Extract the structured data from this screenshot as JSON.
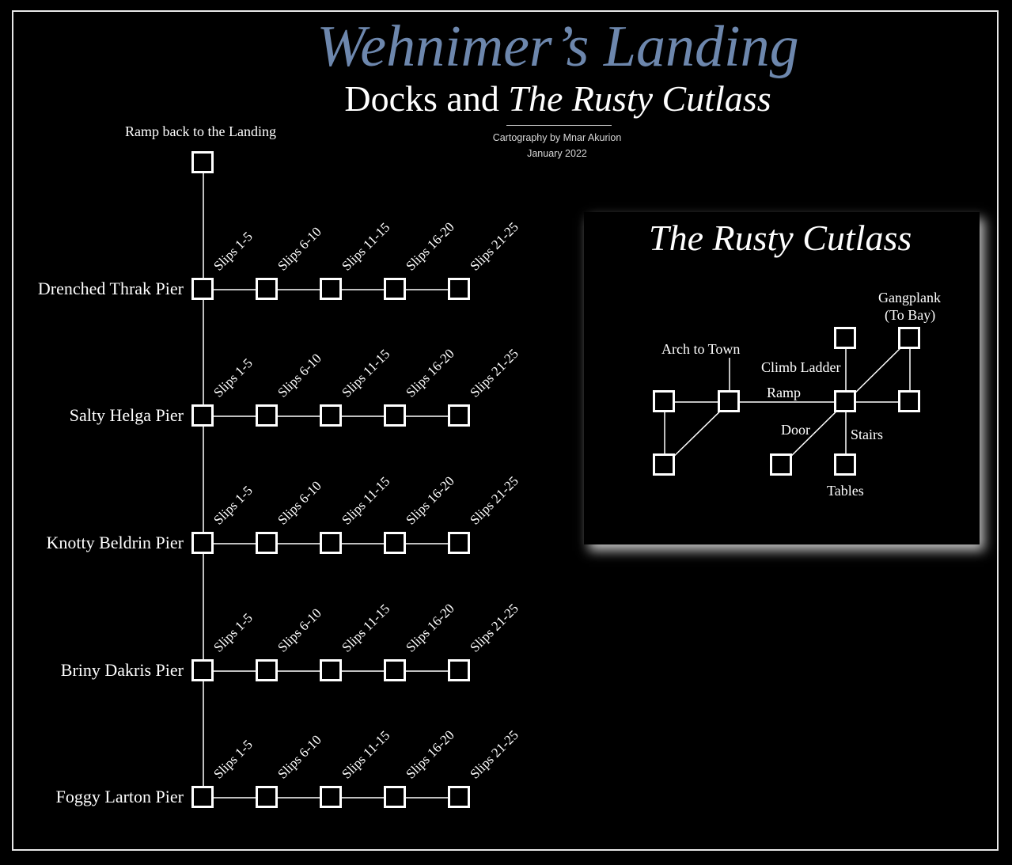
{
  "title": "Wehnimer’s Landing",
  "subtitle_prefix": "Docks and ",
  "subtitle_emphasis": "The Rusty Cutlass",
  "credit": "Cartography by Mnar Akurion",
  "date": "January 2022",
  "ramp_label": "Ramp back to the Landing",
  "piers": [
    {
      "name": "Drenched Thrak Pier"
    },
    {
      "name": "Salty Helga Pier"
    },
    {
      "name": "Knotty Beldrin Pier"
    },
    {
      "name": "Briny Dakris Pier"
    },
    {
      "name": "Foggy Larton Pier"
    }
  ],
  "slip_labels": [
    "Slips 1-5",
    "Slips 6-10",
    "Slips 11-15",
    "Slips 16-20",
    "Slips 21-25"
  ],
  "inset": {
    "title": "The Rusty Cutlass",
    "labels": {
      "arch": "Arch to Town",
      "ramp": "Ramp",
      "climb": "Climb Ladder",
      "gangplank_1": "Gangplank",
      "gangplank_2": "(To Bay)",
      "door": "Door",
      "stairs": "Stairs",
      "tables": "Tables"
    }
  },
  "colors": {
    "background": "#000000",
    "title": "#6d87ad",
    "lines": "#ffffff"
  }
}
